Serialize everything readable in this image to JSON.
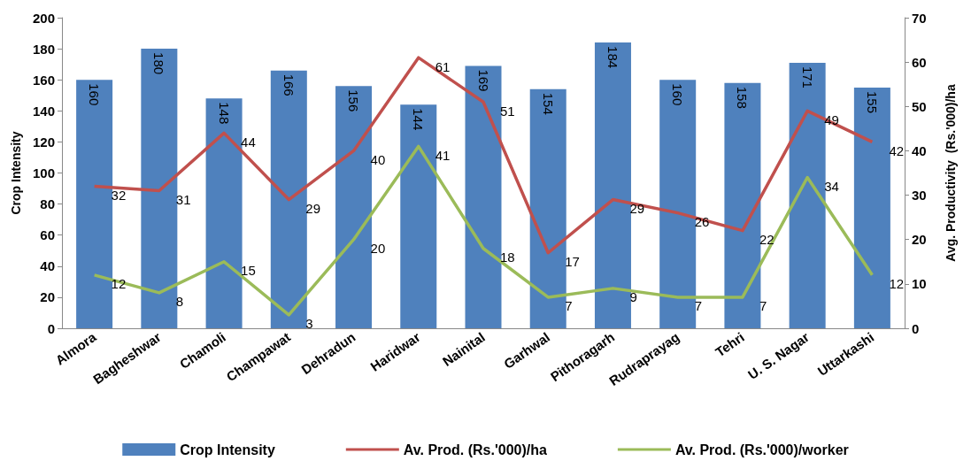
{
  "chart_data": {
    "type": "bar",
    "categories": [
      "Almora",
      "Bagheshwar",
      "Chamoli",
      "Champawat",
      "Dehradun",
      "Haridwar",
      "Nainital",
      "Garhwal",
      "Pithoragarh",
      "Rudraprayag",
      "Tehri",
      "U. S. Nagar",
      "Uttarkashi"
    ],
    "series": [
      {
        "name": "Crop Intensity",
        "color": "#4f81bd",
        "values": [
          160,
          180,
          148,
          166,
          156,
          144,
          169,
          154,
          184,
          160,
          158,
          171,
          155
        ]
      },
      {
        "name": "Av. Prod. (Rs.'000)/ha",
        "type": "line",
        "axis": "y2",
        "color": "#c0504d",
        "values": [
          32,
          31,
          44,
          29,
          40,
          61,
          51,
          17,
          29,
          26,
          22,
          49,
          42
        ]
      },
      {
        "name": "Av. Prod. (Rs.'000)/worker",
        "type": "line",
        "axis": "y2",
        "color": "#9bbb59",
        "values": [
          12,
          8,
          15,
          3,
          20,
          41,
          18,
          7,
          9,
          7,
          7,
          34,
          12
        ]
      }
    ],
    "ylabel": "Crop Intensity",
    "y2label": "Avg. Productivity  (Rs.'000)/ha",
    "ylim": [
      0,
      200
    ],
    "yticks": [
      0,
      20,
      40,
      60,
      80,
      100,
      120,
      140,
      160,
      180,
      200
    ],
    "y2lim": [
      0,
      70
    ],
    "y2ticks": [
      0,
      10,
      20,
      30,
      40,
      50,
      60,
      70
    ],
    "data_labels": true,
    "legend": "bottom",
    "grid": false,
    "marker": "none",
    "line_style": "solid"
  }
}
